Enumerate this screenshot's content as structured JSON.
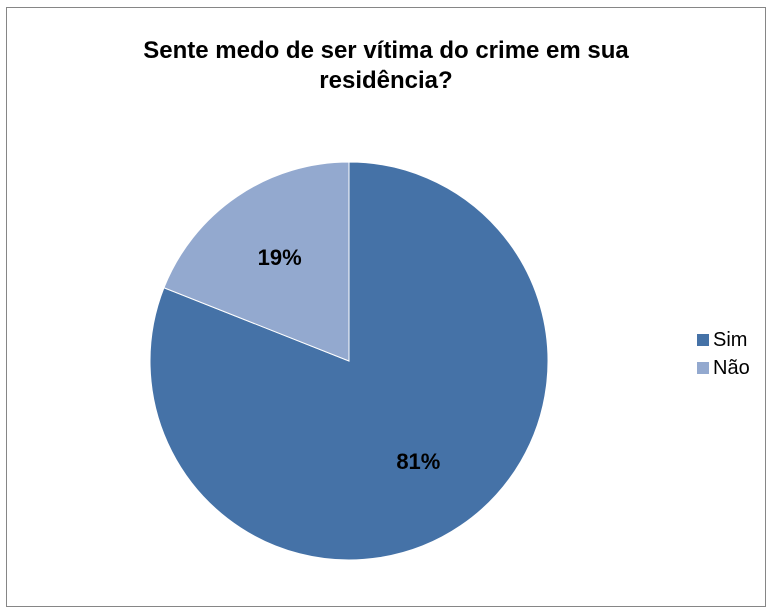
{
  "chart_data": {
    "type": "pie",
    "title_lines": [
      "Sente medo de ser vítima do crime em sua",
      "residência?"
    ],
    "categories": [
      "Sim",
      "Não"
    ],
    "values": [
      81,
      19
    ],
    "data_labels": [
      "81%",
      "19%"
    ],
    "colors": [
      "#4572a7",
      "#93a9cf"
    ],
    "legend_position": "right"
  }
}
